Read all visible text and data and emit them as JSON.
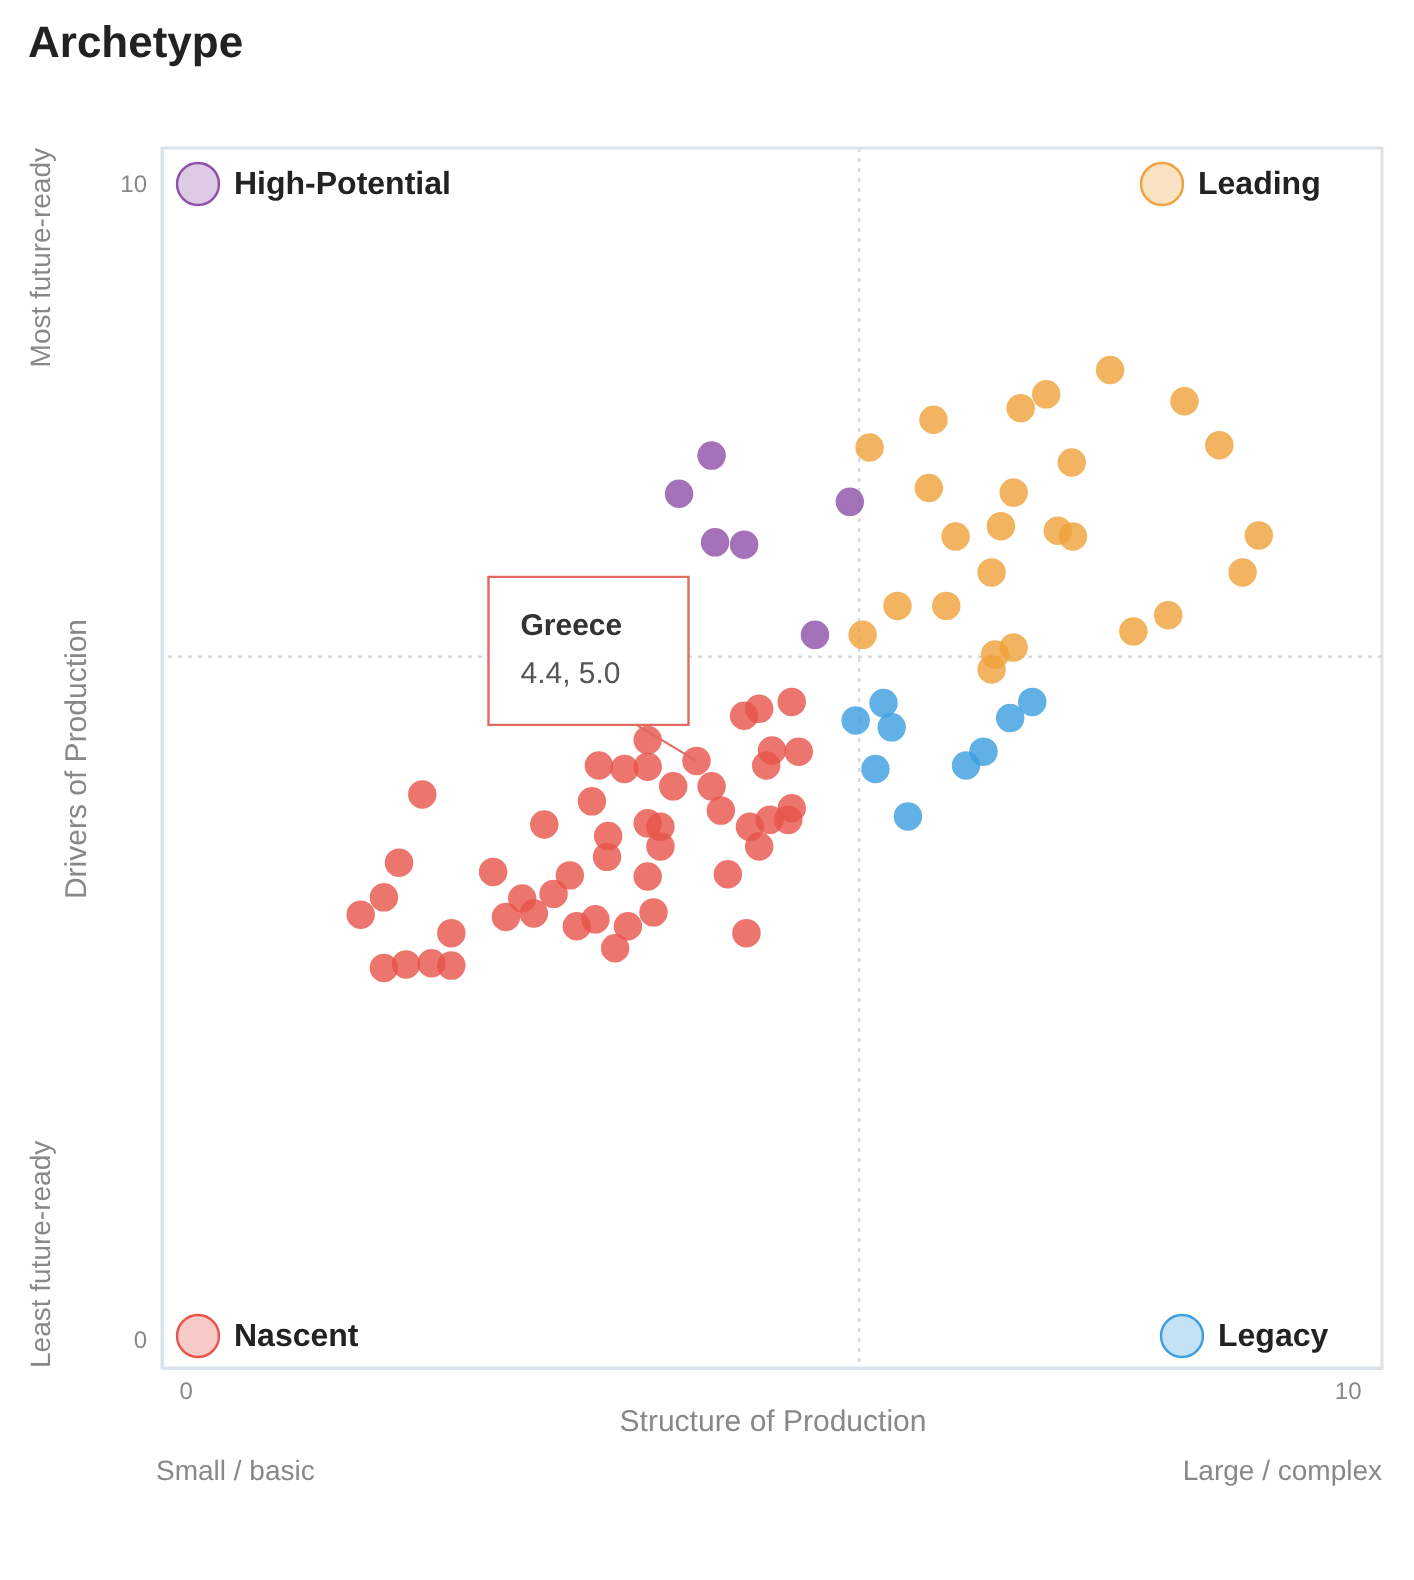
{
  "chart_data": {
    "type": "scatter",
    "title": "Archetype",
    "xlabel": "Structure of Production",
    "ylabel": "Drivers of Production",
    "legend": "bottom left",
    "xlim": [
      -0.2,
      10.3
    ],
    "ylim": [
      -0.25,
      10.3
    ],
    "xticks": [
      0,
      10
    ],
    "yticks": [
      0,
      10
    ],
    "grid": false,
    "marker": "circle",
    "series": [
      {
        "name": "High-Potential",
        "color": "#8e4fa8",
        "x": [
          4.53,
          4.25,
          4.56,
          4.81,
          5.72,
          5.42
        ],
        "values": [
          7.64,
          7.31,
          6.89,
          6.87,
          7.24,
          6.09
        ]
      },
      {
        "name": "Leading",
        "color": "#f0a23a",
        "x": [
          7.96,
          8.6,
          8.9,
          7.41,
          7.19,
          6.44,
          5.89,
          7.63,
          6.4,
          7.13,
          7.02,
          7.51,
          7.64,
          9.24,
          6.63,
          9.1,
          6.94,
          6.13,
          6.55,
          5.83,
          8.46,
          8.16,
          7.13,
          6.97,
          6.94
        ],
        "values": [
          8.38,
          8.11,
          7.73,
          8.17,
          8.05,
          7.95,
          7.71,
          7.58,
          7.36,
          7.32,
          7.03,
          6.99,
          6.94,
          6.95,
          6.94,
          6.63,
          6.63,
          6.34,
          6.34,
          6.09,
          6.26,
          6.12,
          5.98,
          5.92,
          5.79
        ]
      },
      {
        "name": "Nascent",
        "color": "#e8544a",
        "x": [
          5.22,
          4.94,
          4.81,
          3.98,
          4.4,
          5.05,
          5.28,
          5.0,
          3.56,
          3.78,
          3.98,
          4.2,
          4.53,
          2.04,
          3.5,
          4.61,
          3.98,
          4.09,
          5.22,
          5.03,
          4.86,
          5.19,
          4.94,
          3.09,
          3.64,
          3.63,
          4.09,
          1.84,
          2.65,
          3.31,
          3.17,
          3.0,
          2.9,
          2.76,
          3.98,
          4.67,
          1.71,
          1.51,
          2.29,
          3.53,
          3.37,
          3.81,
          4.03,
          3.7,
          4.83,
          1.71,
          1.9,
          2.12,
          2.29
        ],
        "values": [
          5.51,
          5.45,
          5.39,
          5.18,
          5.0,
          5.09,
          5.08,
          4.96,
          4.96,
          4.93,
          4.95,
          4.78,
          4.78,
          4.71,
          4.65,
          4.57,
          4.46,
          4.43,
          4.59,
          4.49,
          4.43,
          4.49,
          4.26,
          4.45,
          4.35,
          4.17,
          4.26,
          4.12,
          4.04,
          4.01,
          3.85,
          3.68,
          3.81,
          3.65,
          4.0,
          4.02,
          3.82,
          3.67,
          3.51,
          3.63,
          3.57,
          3.57,
          3.69,
          3.38,
          3.51,
          3.21,
          3.24,
          3.25,
          3.23
        ]
      },
      {
        "name": "Legacy",
        "color": "#3a9ee0",
        "x": [
          5.77,
          6.01,
          6.08,
          5.94,
          6.22,
          6.72,
          6.87,
          7.1,
          7.29
        ],
        "values": [
          5.35,
          5.5,
          5.29,
          4.93,
          4.52,
          4.96,
          5.08,
          5.37,
          5.51
        ]
      }
    ],
    "ref_lines": [
      {
        "axis": "x",
        "value": 5.8,
        "color": "#d5d9de",
        "line_style": "dotted"
      },
      {
        "axis": "y",
        "value": 5.9,
        "color": "#d5d9de",
        "line_style": "dotted"
      }
    ],
    "annotations": [
      {
        "text": "4.4, 5.0",
        "x": 4.4,
        "y": 5.0
      },
      "Greece",
      "Most future-ready",
      "Least future-ready",
      "Small / basic",
      "Large / complex"
    ]
  }
}
